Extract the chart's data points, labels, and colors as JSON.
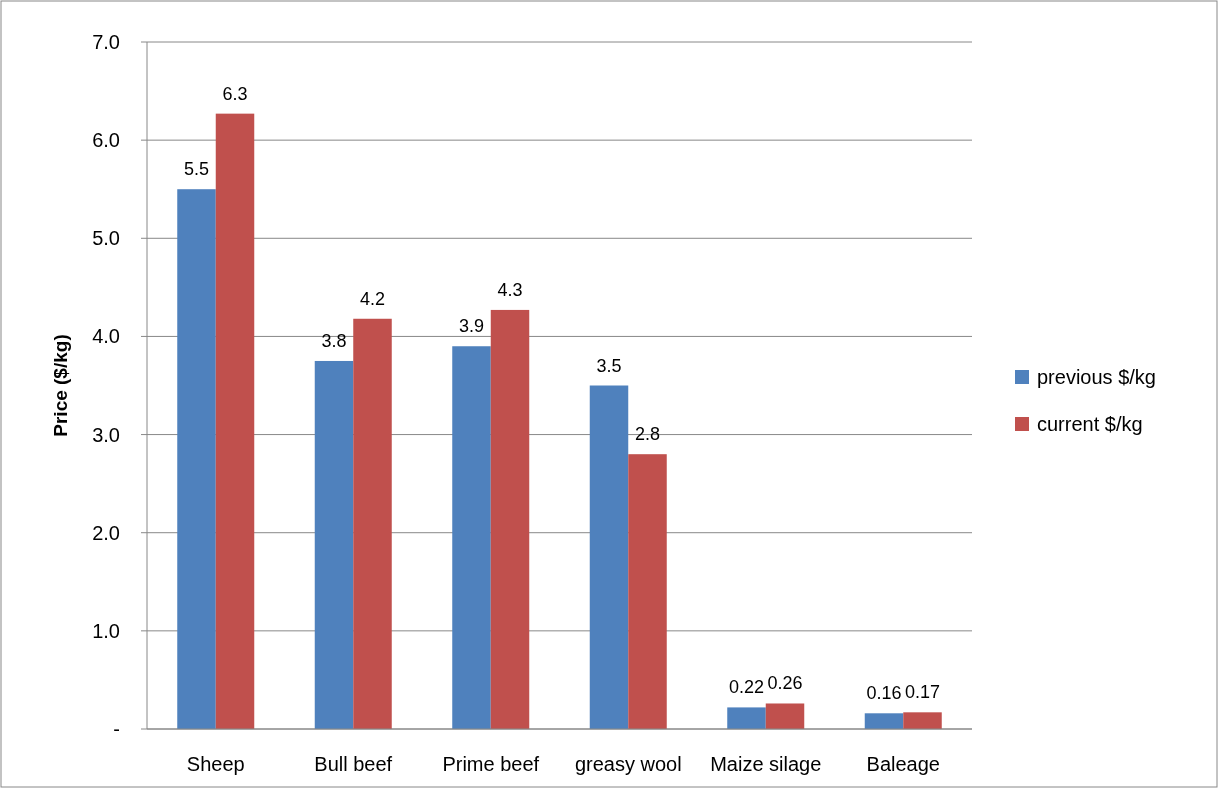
{
  "chart_data": {
    "type": "bar",
    "ylabel": "Price ($/kg)",
    "categories": [
      "Sheep",
      "Bull beef",
      "Prime beef",
      "greasy wool",
      "Maize silage",
      "Baleage"
    ],
    "series": [
      {
        "name": "previous $/kg",
        "color": "#4f81bd",
        "values": [
          5.5,
          3.75,
          3.9,
          3.5,
          0.22,
          0.16
        ],
        "value_labels": [
          "5.5",
          "3.8",
          "3.9",
          "3.5",
          "0.22",
          "0.16"
        ]
      },
      {
        "name": "current $/kg",
        "color": "#c0504d",
        "values": [
          6.27,
          4.18,
          4.27,
          2.8,
          0.26,
          0.17
        ],
        "value_labels": [
          "6.3",
          "4.2",
          "4.3",
          "2.8",
          "0.26",
          "0.17"
        ]
      }
    ],
    "ylim": [
      0,
      7
    ],
    "yticks": [
      {
        "value": 0,
        "label": "-"
      },
      {
        "value": 1,
        "label": "1.0"
      },
      {
        "value": 2,
        "label": "2.0"
      },
      {
        "value": 3,
        "label": "3.0"
      },
      {
        "value": 4,
        "label": "4.0"
      },
      {
        "value": 5,
        "label": "5.0"
      },
      {
        "value": 6,
        "label": "6.0"
      },
      {
        "value": 7,
        "label": "7.0"
      }
    ],
    "grid": "y",
    "legend": "right"
  }
}
